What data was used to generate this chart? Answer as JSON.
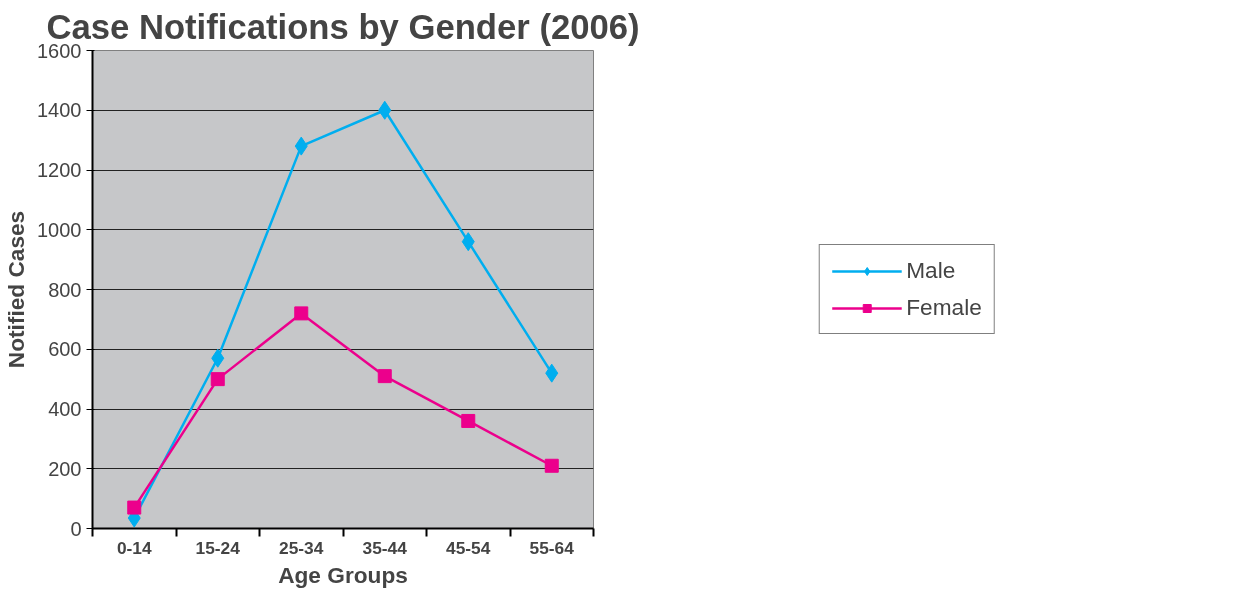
{
  "chart_data": {
    "type": "line",
    "title": "Case Notifications by Gender (2006)",
    "xlabel": "Age Groups",
    "ylabel": "Notified Cases",
    "categories": [
      "0-14",
      "15-24",
      "25-34",
      "35-44",
      "45-54",
      "55-64"
    ],
    "series": [
      {
        "name": "Male",
        "color": "#00aeef",
        "marker": "diamond",
        "values": [
          35,
          570,
          1280,
          1400,
          960,
          520
        ]
      },
      {
        "name": "Female",
        "color": "#ec008c",
        "marker": "square",
        "values": [
          70,
          500,
          720,
          510,
          360,
          210
        ]
      }
    ],
    "ylim": [
      0,
      1600
    ],
    "yticks": [
      0,
      200,
      400,
      600,
      800,
      1000,
      1200,
      1400,
      1600
    ],
    "grid": "y",
    "legend": "right",
    "line_style": "solid"
  }
}
